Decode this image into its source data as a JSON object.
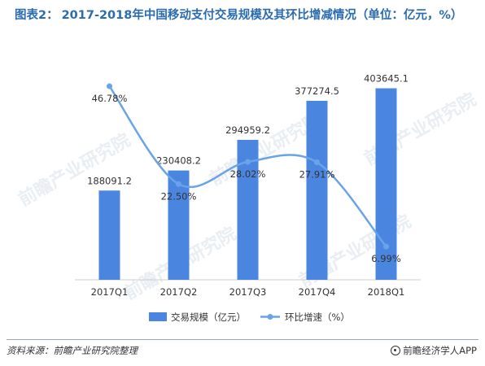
{
  "title": {
    "prefix": "图表2：",
    "text": "2017-2018年中国移动支付交易规模及其环比增减情况（单位：亿元，%）"
  },
  "colors": {
    "bar": "#4a86e0",
    "line": "#6aa3e8",
    "title": "#2b6cb0"
  },
  "chart_data": {
    "type": "bar",
    "categories": [
      "2017Q1",
      "2017Q2",
      "2017Q3",
      "2017Q4",
      "2018Q1"
    ],
    "series": [
      {
        "name": "交易规模（亿元）",
        "type": "bar",
        "values": [
          188091.2,
          230408.2,
          294959.2,
          377274.5,
          403645.1
        ],
        "labels": [
          "188091.2",
          "230408.2",
          "294959.2",
          "377274.5",
          "403645.1"
        ]
      },
      {
        "name": "环比增速（%）",
        "type": "line",
        "values": [
          46.78,
          22.5,
          28.02,
          27.91,
          6.99
        ],
        "labels": [
          "46.78%",
          "22.50%",
          "28.02%",
          "27.91%",
          "6.99%"
        ]
      }
    ],
    "legend_position": "bottom",
    "grid": false
  },
  "footer": {
    "source": "资料来源：前瞻产业研究院整理",
    "brand": "前瞻经济学人APP"
  },
  "watermark": "前瞻产业研究院"
}
